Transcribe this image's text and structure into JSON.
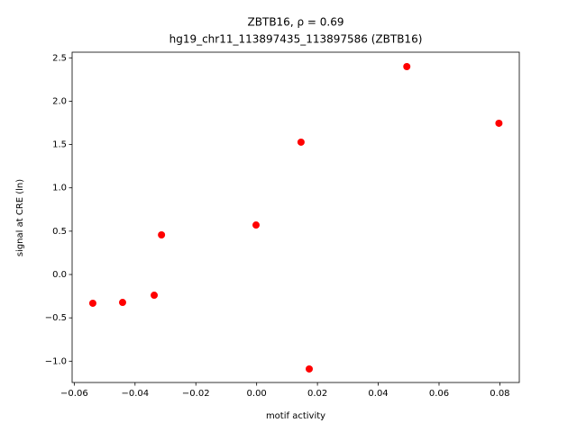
{
  "chart_data": {
    "type": "scatter",
    "title": "ZBTB16, ρ = 0.69",
    "subtitle": "hg19_chr11_113897435_113897586 (ZBTB16)",
    "x_label": "motif activity",
    "y_label": "signal at CRE (ln)",
    "color": "#ff0000",
    "x": [
      -0.0539,
      -0.0441,
      -0.0337,
      -0.0313,
      -0.0002,
      0.0146,
      0.0173,
      0.0494,
      0.0797
    ],
    "y": [
      -0.332,
      -0.322,
      -0.239,
      0.457,
      0.571,
      1.527,
      -1.09,
      2.399,
      1.745
    ],
    "xlim": [
      -0.0607,
      0.0864
    ],
    "ylim": [
      -1.246,
      2.565
    ],
    "xticks": [
      {
        "value": -0.06,
        "label": "−0.06"
      },
      {
        "value": -0.04,
        "label": "−0.04"
      },
      {
        "value": -0.02,
        "label": "−0.02"
      },
      {
        "value": 0,
        "label": "0.00"
      },
      0.02,
      0.04,
      0.06,
      0.08
    ],
    "yticks": [
      {
        "value": -1,
        "label": "−1.0"
      },
      {
        "value": -0.5,
        "label": "−0.5"
      },
      {
        "value": 0,
        "label": "0.0"
      },
      0.5,
      {
        "value": 1,
        "label": "1.0"
      },
      1.5,
      {
        "value": 2,
        "label": "2.0"
      },
      2.5
    ],
    "grid": false
  }
}
